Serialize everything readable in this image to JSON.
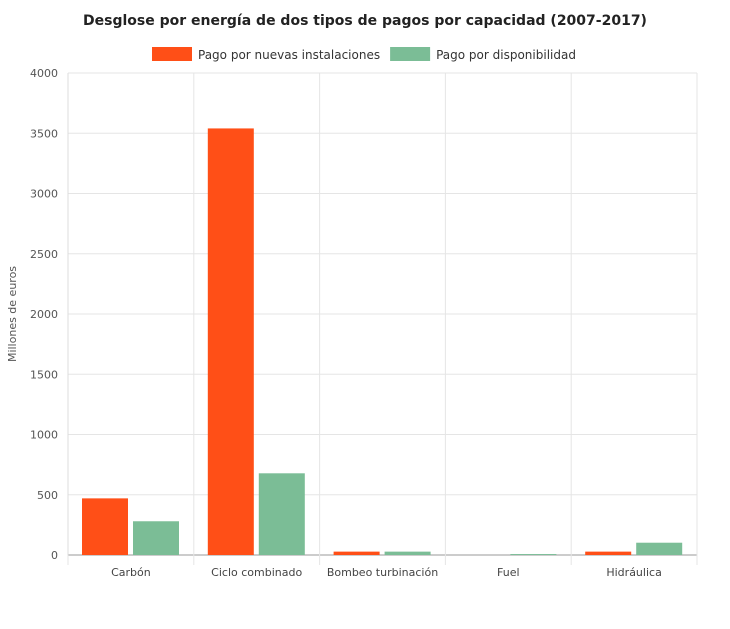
{
  "chart_data": {
    "type": "bar",
    "title": "Desglose por energía de dos tipos de pagos por capacidad (2007-2017)",
    "xlabel": "",
    "ylabel": "Millones de euros",
    "ylim": [
      0,
      4000
    ],
    "yticks": [
      0,
      500,
      1000,
      1500,
      2000,
      2500,
      3000,
      3500,
      4000
    ],
    "categories": [
      "Carbón",
      "Ciclo combinado",
      "Bombeo turbinación",
      "Fuel",
      "Hidráulica"
    ],
    "series": [
      {
        "name": "Pago por nuevas instalaciones",
        "color": "#ff4f17",
        "values": [
          470,
          3540,
          28,
          0,
          28
        ]
      },
      {
        "name": "Pago por disponibilidad",
        "color": "#7bbd96",
        "values": [
          280,
          678,
          28,
          8,
          102
        ]
      }
    ],
    "grid": true,
    "legend": "top-center"
  }
}
